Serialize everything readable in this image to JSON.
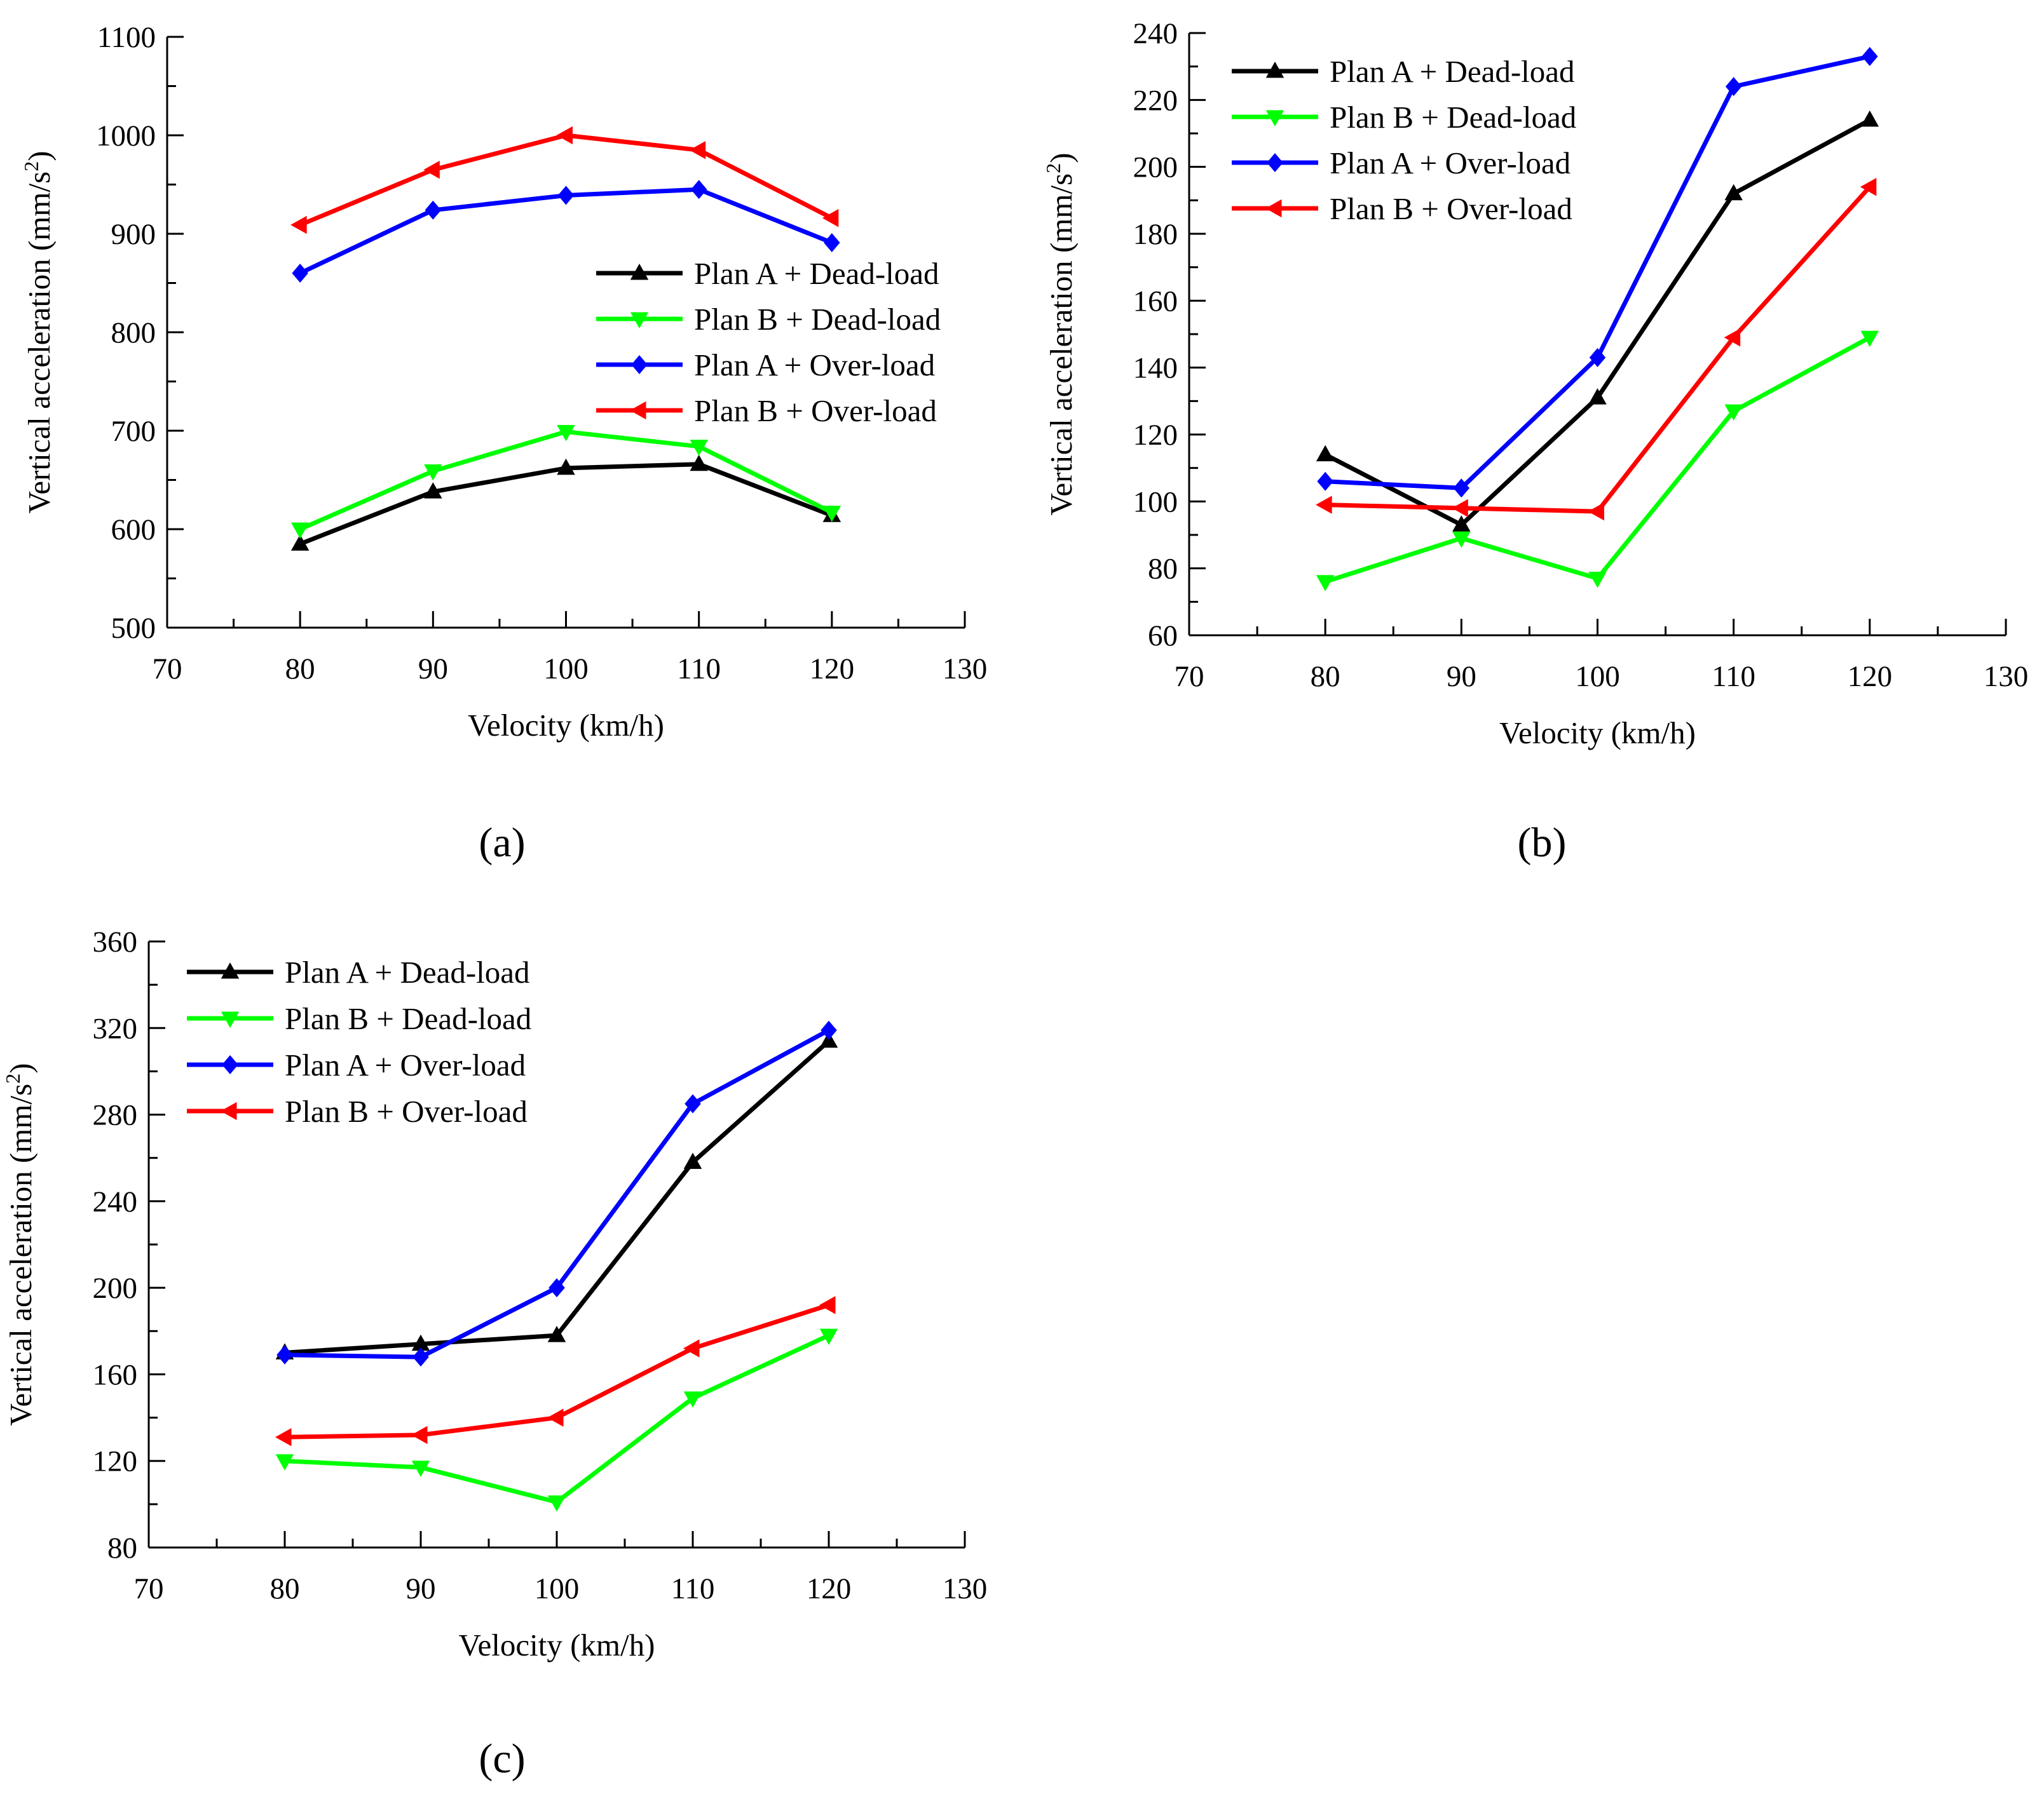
{
  "figure": {
    "panel_labels": [
      "(a)",
      "(b)",
      "(c)"
    ]
  },
  "chart_data": [
    {
      "type": "line",
      "panel": "a",
      "title": "",
      "xlabel": "Velocity (km/h)",
      "ylabel": "Vertical acceleration (mm/s²)",
      "xlim": [
        70,
        130
      ],
      "ylim": [
        500,
        1100
      ],
      "xticks": [
        70,
        80,
        90,
        100,
        110,
        120,
        130
      ],
      "yticks": [
        500,
        600,
        700,
        800,
        900,
        1000,
        1100
      ],
      "legend_position": "middle-right",
      "grid": false,
      "x": [
        80,
        90,
        100,
        110,
        120
      ],
      "series": [
        {
          "name": "Plan A + Dead-load",
          "color": "#000000",
          "marker": "triangle-up",
          "values": [
            585,
            638,
            662,
            666,
            614
          ]
        },
        {
          "name": "Plan B + Dead-load",
          "color": "#00ff00",
          "marker": "triangle-down",
          "values": [
            600,
            659,
            699,
            684,
            617
          ]
        },
        {
          "name": "Plan A + Over-load",
          "color": "#0000ff",
          "marker": "diamond",
          "values": [
            860,
            924,
            939,
            945,
            891
          ]
        },
        {
          "name": "Plan B + Over-load",
          "color": "#ff0000",
          "marker": "triangle-left",
          "values": [
            909,
            965,
            1000,
            985,
            916
          ]
        }
      ]
    },
    {
      "type": "line",
      "panel": "b",
      "title": "",
      "xlabel": "Velocity (km/h)",
      "ylabel": "Vertical acceleration (mm/s²)",
      "xlim": [
        70,
        130
      ],
      "ylim": [
        60,
        240
      ],
      "xticks": [
        70,
        80,
        90,
        100,
        110,
        120,
        130
      ],
      "yticks": [
        60,
        80,
        100,
        120,
        140,
        160,
        180,
        200,
        220,
        240
      ],
      "legend_position": "top-left",
      "grid": false,
      "x": [
        80,
        90,
        100,
        110,
        120
      ],
      "series": [
        {
          "name": "Plan A + Dead-load",
          "color": "#000000",
          "marker": "triangle-up",
          "values": [
            114,
            93,
            131,
            192,
            214
          ]
        },
        {
          "name": "Plan B + Dead-load",
          "color": "#00ff00",
          "marker": "triangle-down",
          "values": [
            76,
            89,
            77,
            127,
            149
          ]
        },
        {
          "name": "Plan A + Over-load",
          "color": "#0000ff",
          "marker": "diamond",
          "values": [
            106,
            104,
            143,
            224,
            233
          ]
        },
        {
          "name": "Plan B + Over-load",
          "color": "#ff0000",
          "marker": "triangle-left",
          "values": [
            99,
            98,
            97,
            149,
            194
          ]
        }
      ]
    },
    {
      "type": "line",
      "panel": "c",
      "title": "",
      "xlabel": "Velocity (km/h)",
      "ylabel": "Vertical acceleration (mm/s²)",
      "xlim": [
        70,
        130
      ],
      "ylim": [
        80,
        360
      ],
      "xticks": [
        70,
        80,
        90,
        100,
        110,
        120,
        130
      ],
      "yticks": [
        80,
        120,
        160,
        200,
        240,
        280,
        320,
        360
      ],
      "legend_position": "top-left",
      "grid": false,
      "x": [
        80,
        90,
        100,
        110,
        120
      ],
      "series": [
        {
          "name": "Plan A + Dead-load",
          "color": "#000000",
          "marker": "triangle-up",
          "values": [
            170,
            174,
            178,
            258,
            314
          ]
        },
        {
          "name": "Plan B + Dead-load",
          "color": "#00ff00",
          "marker": "triangle-down",
          "values": [
            120,
            117,
            101,
            149,
            178
          ]
        },
        {
          "name": "Plan A + Over-load",
          "color": "#0000ff",
          "marker": "diamond",
          "values": [
            169,
            168,
            200,
            285,
            319
          ]
        },
        {
          "name": "Plan B + Over-load",
          "color": "#ff0000",
          "marker": "triangle-left",
          "values": [
            131,
            132,
            140,
            172,
            192
          ]
        }
      ]
    }
  ]
}
